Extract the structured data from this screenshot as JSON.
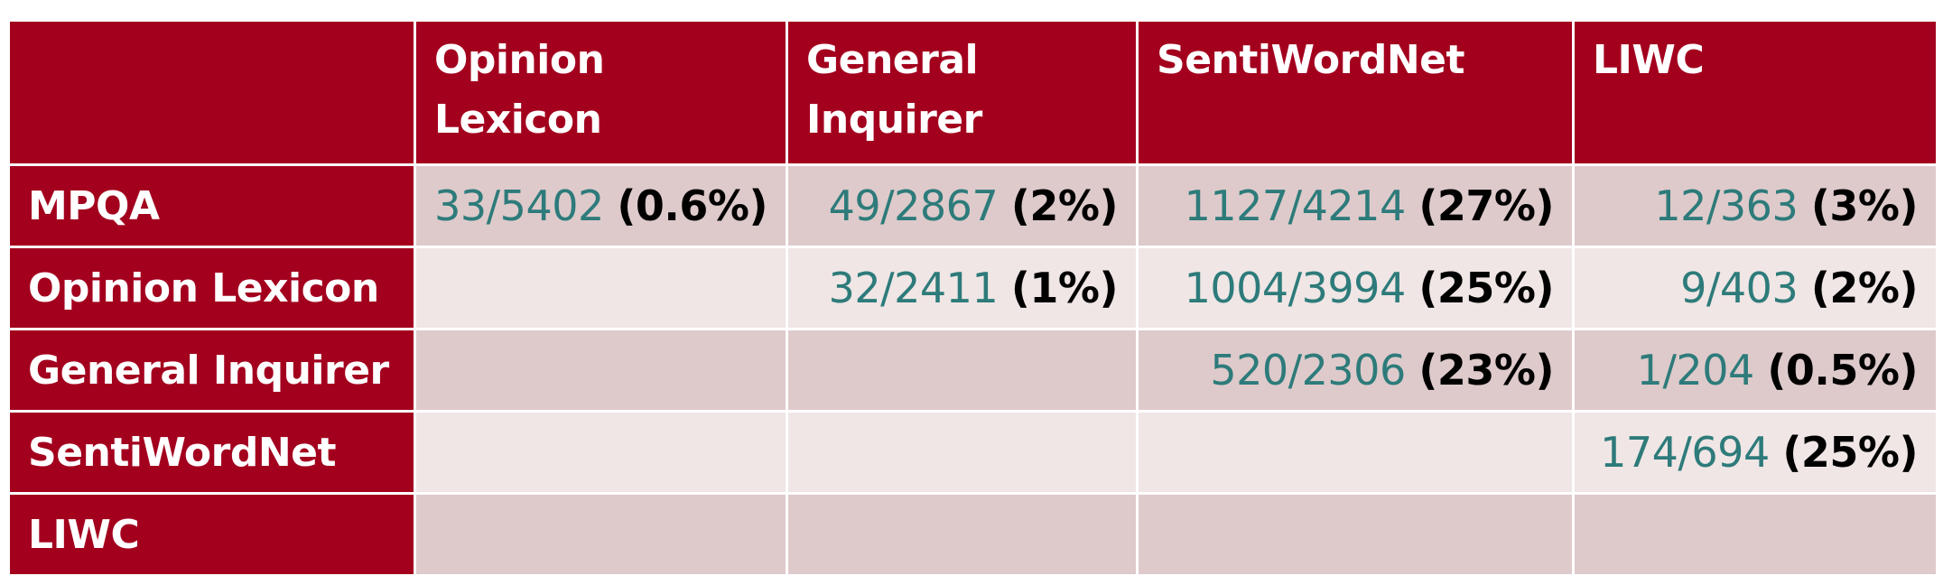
{
  "table": {
    "corner": "",
    "columns": [
      "Opinion Lexicon",
      "General Inquirer",
      "SentiWordNet",
      "LIWC"
    ],
    "rows": [
      {
        "label": "MPQA",
        "cells": [
          {
            "frac": "33/5402",
            "pct": "(0.6%)"
          },
          {
            "frac": "49/2867",
            "pct": "(2%)"
          },
          {
            "frac": "1127/4214",
            "pct": "(27%)"
          },
          {
            "frac": "12/363",
            "pct": "(3%)"
          }
        ]
      },
      {
        "label": "Opinion Lexicon",
        "cells": [
          {
            "frac": "",
            "pct": ""
          },
          {
            "frac": "32/2411",
            "pct": "(1%)"
          },
          {
            "frac": "1004/3994",
            "pct": "(25%)"
          },
          {
            "frac": "9/403",
            "pct": "(2%)"
          }
        ]
      },
      {
        "label": "General Inquirer",
        "cells": [
          {
            "frac": "",
            "pct": ""
          },
          {
            "frac": "",
            "pct": ""
          },
          {
            "frac": "520/2306",
            "pct": "(23%)"
          },
          {
            "frac": "1/204",
            "pct": "(0.5%)"
          }
        ]
      },
      {
        "label": "SentiWordNet",
        "cells": [
          {
            "frac": "",
            "pct": ""
          },
          {
            "frac": "",
            "pct": ""
          },
          {
            "frac": "",
            "pct": ""
          },
          {
            "frac": "174/694",
            "pct": "(25%)"
          }
        ]
      },
      {
        "label": "LIWC",
        "cells": [
          {
            "frac": "",
            "pct": ""
          },
          {
            "frac": "",
            "pct": ""
          },
          {
            "frac": "",
            "pct": ""
          },
          {
            "frac": "",
            "pct": ""
          }
        ]
      }
    ]
  },
  "colors": {
    "header": "#a3001e",
    "row_dark": "#decacb",
    "row_light": "#efe6e5",
    "fraction_text": "#2d7b7a",
    "percent_text": "#000000"
  }
}
